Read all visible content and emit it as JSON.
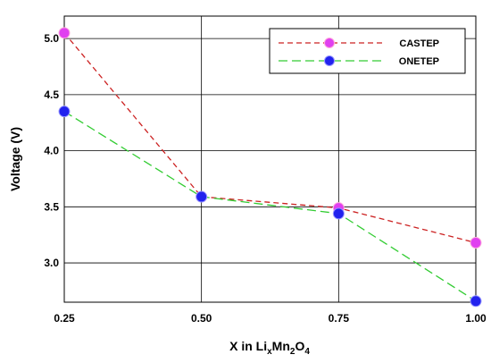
{
  "chart_data": {
    "type": "line",
    "title": "",
    "xlabel": "X in LixMn2O4",
    "xlabel_parts": {
      "prefix": "X in Li",
      "sub1": "x",
      "mid": "Mn",
      "sub2": "2",
      "mid2": "O",
      "sub3": "4"
    },
    "ylabel": "Voltage (V)",
    "x": [
      0.25,
      0.5,
      0.75,
      1.0
    ],
    "x_tick_labels": [
      "0.25",
      "0.50",
      "0.75",
      "1.00"
    ],
    "y_tick_labels": [
      "3.0",
      "3.5",
      "4.0",
      "4.5",
      "5.0"
    ],
    "y_ticks": [
      3.0,
      3.5,
      4.0,
      4.5,
      5.0
    ],
    "xlim": [
      0.25,
      1.0
    ],
    "ylim": [
      2.65,
      5.2
    ],
    "grid": true,
    "legend_position": "top-right",
    "series": [
      {
        "name": "CASTEP",
        "values": [
          5.05,
          3.59,
          3.49,
          3.18
        ],
        "line_color": "#cc2222",
        "marker_color": "#e040f0"
      },
      {
        "name": "ONETEP",
        "values": [
          4.35,
          3.59,
          3.44,
          2.66
        ],
        "line_color": "#33cc33",
        "marker_color": "#2222ee"
      }
    ]
  }
}
